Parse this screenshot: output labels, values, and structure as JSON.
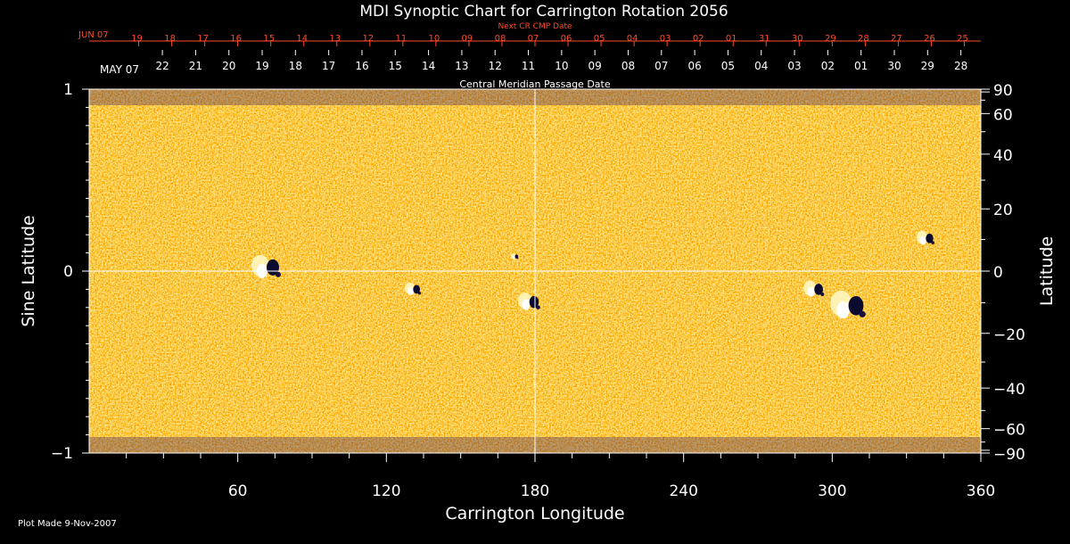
{
  "chart_data": {
    "type": "heatmap",
    "title": "MDI Synoptic Chart for Carrington Rotation 2056",
    "xlabel": "Carrington Longitude",
    "ylabel_left": "Sine Latitude",
    "ylabel_right": "Latitude",
    "xlim": [
      0,
      360
    ],
    "ylim": [
      -1,
      1
    ],
    "x_ticks": [
      60,
      120,
      180,
      240,
      300,
      360
    ],
    "y_ticks_left": [
      {
        "value": 1,
        "label": "1"
      },
      {
        "value": 0,
        "label": "0"
      },
      {
        "value": -1,
        "label": "−1"
      }
    ],
    "y_ticks_right": [
      {
        "deg": 90,
        "label": "90"
      },
      {
        "deg": 60,
        "label": "60"
      },
      {
        "deg": 40,
        "label": "40"
      },
      {
        "deg": 20,
        "label": "20"
      },
      {
        "deg": 0,
        "label": "0"
      },
      {
        "deg": -20,
        "label": "−20"
      },
      {
        "deg": -40,
        "label": "−40"
      },
      {
        "deg": -60,
        "label": "−60"
      },
      {
        "deg": -90,
        "label": "−90"
      }
    ],
    "top_axis_red": {
      "title": "Next CR CMP Date",
      "first_label": "JUN 07",
      "labels": [
        "19",
        "18",
        "17",
        "16",
        "15",
        "14",
        "13",
        "12",
        "11",
        "10",
        "09",
        "08",
        "07",
        "06",
        "05",
        "04",
        "03",
        "02",
        "01",
        "31",
        "30",
        "29",
        "28",
        "27",
        "26",
        "25"
      ]
    },
    "top_axis_white": {
      "title": "Central Meridian Passage Date",
      "first_label": "MAY 07",
      "labels": [
        "22",
        "21",
        "20",
        "19",
        "18",
        "17",
        "16",
        "15",
        "14",
        "13",
        "12",
        "11",
        "10",
        "09",
        "08",
        "07",
        "06",
        "05",
        "04",
        "03",
        "02",
        "01",
        "30",
        "29",
        "28"
      ]
    },
    "grid_lines": {
      "longitude": 180,
      "sine_latitude": 0
    },
    "active_regions": [
      {
        "lon": 72,
        "sinlat": 0.02,
        "size": 1.0
      },
      {
        "lon": 131,
        "sinlat": -0.1,
        "size": 0.55
      },
      {
        "lon": 178,
        "sinlat": -0.17,
        "size": 0.75
      },
      {
        "lon": 172,
        "sinlat": 0.08,
        "size": 0.25
      },
      {
        "lon": 293,
        "sinlat": -0.1,
        "size": 0.7
      },
      {
        "lon": 307,
        "sinlat": -0.19,
        "size": 1.2
      },
      {
        "lon": 338,
        "sinlat": 0.18,
        "size": 0.6
      }
    ],
    "colors": {
      "background": "#000000",
      "field": "#ff5a10",
      "positive": "#ffffff",
      "negative": "#101040",
      "red_axis": "#ff4a2a"
    }
  },
  "footer": {
    "plot_made": "Plot Made  9-Nov-2007"
  }
}
